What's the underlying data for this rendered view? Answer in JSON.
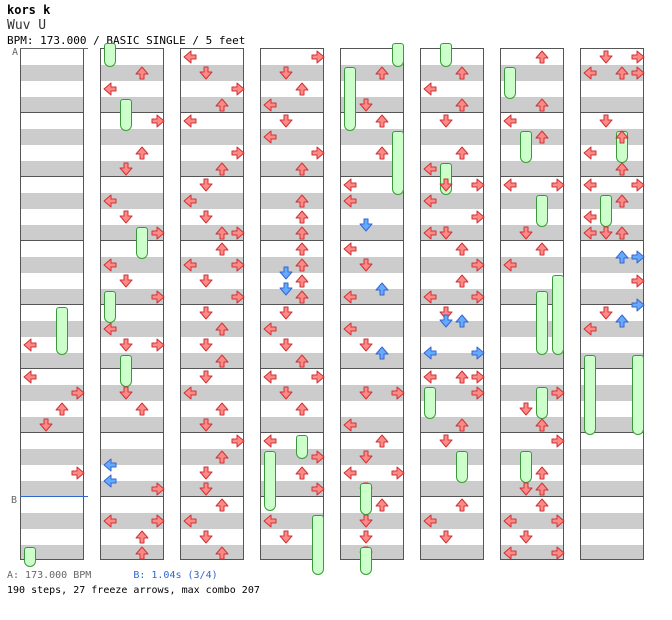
{
  "header": {
    "title": "kors k",
    "artist": "Wuv U",
    "info": "BPM: 173.000 / BASIC SINGLE / 5 feet"
  },
  "markers": {
    "a": "A",
    "b": "B"
  },
  "footer": {
    "bpm_label": "A: 173.000 BPM",
    "sync_label": "B: 1.04s (3/4)",
    "stats": "190 steps, 27 freeze arrows, max combo 207"
  },
  "colors": {
    "red_arrow": "#ff8888",
    "blue_arrow": "#66aaff",
    "freeze": "#ccffcc",
    "stripe": "#cccccc",
    "marker_a": "#666666",
    "marker_b": "#3366cc"
  },
  "chart_data": {
    "type": "table",
    "columns": 8,
    "lanes": [
      "left",
      "down",
      "up",
      "right"
    ],
    "steps_per_column": 128,
    "total_steps": 190,
    "freeze_arrows": 27,
    "max_combo": 207,
    "bpm": 173.0,
    "sync_seconds": 1.04
  }
}
